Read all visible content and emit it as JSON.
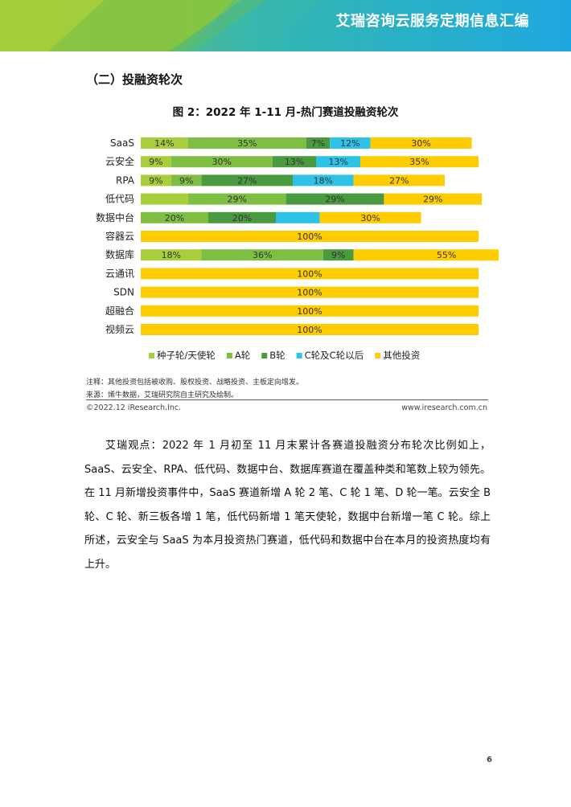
{
  "header": {
    "title": "艾瑞咨询云服务定期信息汇编"
  },
  "section": {
    "heading": "（二）投融资轮次"
  },
  "chart_data": {
    "type": "bar",
    "orientation": "horizontal",
    "stacked": "percent",
    "title": "图 2：2022 年 1-11 月-热门赛道投融资轮次",
    "categories": [
      "SaaS",
      "云安全",
      "RPA",
      "低代码",
      "数据中台",
      "容器云",
      "数据库",
      "云通讯",
      "SDN",
      "超融合",
      "视频云"
    ],
    "series": [
      {
        "name": "种子轮/天使轮",
        "color": "#A9CE3C",
        "values": [
          14,
          9,
          9,
          14,
          0,
          0,
          18,
          0,
          0,
          0,
          0
        ],
        "labels": [
          "14%",
          "9%",
          "9%",
          "",
          "",
          "",
          "18%",
          "",
          "",
          "",
          ""
        ]
      },
      {
        "name": "A轮",
        "color": "#7DBE43",
        "values": [
          35,
          30,
          9,
          29,
          20,
          0,
          36,
          0,
          0,
          0,
          0
        ],
        "labels": [
          "35%",
          "30%",
          "9%",
          "29%",
          "20%",
          "",
          "36%",
          "",
          "",
          "",
          ""
        ]
      },
      {
        "name": "B轮",
        "color": "#4A9A40",
        "values": [
          7,
          13,
          27,
          29,
          20,
          0,
          9,
          0,
          0,
          0,
          0
        ],
        "labels": [
          "7%",
          "13%",
          "27%",
          "29%",
          "20%",
          "",
          "9%",
          "",
          "",
          "",
          ""
        ]
      },
      {
        "name": "C轮及C轮以后",
        "color": "#2EC2E6",
        "values": [
          12,
          13,
          18,
          0,
          13,
          0,
          0,
          0,
          0,
          0,
          0
        ],
        "labels": [
          "12%",
          "13%",
          "18%",
          "",
          "",
          "",
          "",
          "",
          "",
          "",
          ""
        ]
      },
      {
        "name": "其他投资",
        "color": "#FFCC00",
        "values": [
          30,
          35,
          27,
          29,
          30,
          100,
          55,
          100,
          100,
          100,
          100
        ],
        "labels": [
          "30%",
          "35%",
          "27%",
          "29%",
          "30%",
          "100%",
          "55%",
          "100%",
          "100%",
          "100%",
          "100%"
        ]
      }
    ],
    "xlim": [
      0,
      100
    ],
    "grid": false,
    "legend": "bottom"
  },
  "notes": {
    "note": "注释：其他投资包括被收购、股权投资、战略投资、主板定向增发。",
    "source": "来源：烯牛数据，艾瑞研究院自主研究及绘制。"
  },
  "footer": {
    "copyright": "©2022.12 iResearch.Inc.",
    "website": "www.iresearch.com.cn"
  },
  "body": {
    "paragraph": "艾瑞观点：2022 年 1 月初至 11 月末累计各赛道投融资分布轮次比例如上，SaaS、云安全、RPA、低代码、数据中台、数据库赛道在覆盖种类和笔数上较为领先。在 11 月新增投资事件中，SaaS 赛道新增 A 轮 2 笔、C 轮 1 笔、D 轮一笔。云安全 B 轮、C 轮、新三板各增 1 笔，低代码新增 1 笔天使轮，数据中台新增一笔 C 轮。综上所述，云安全与 SaaS 为本月投资热门赛道，低代码和数据中台在本月的投资热度均有上升。"
  },
  "page": {
    "number": "6"
  }
}
